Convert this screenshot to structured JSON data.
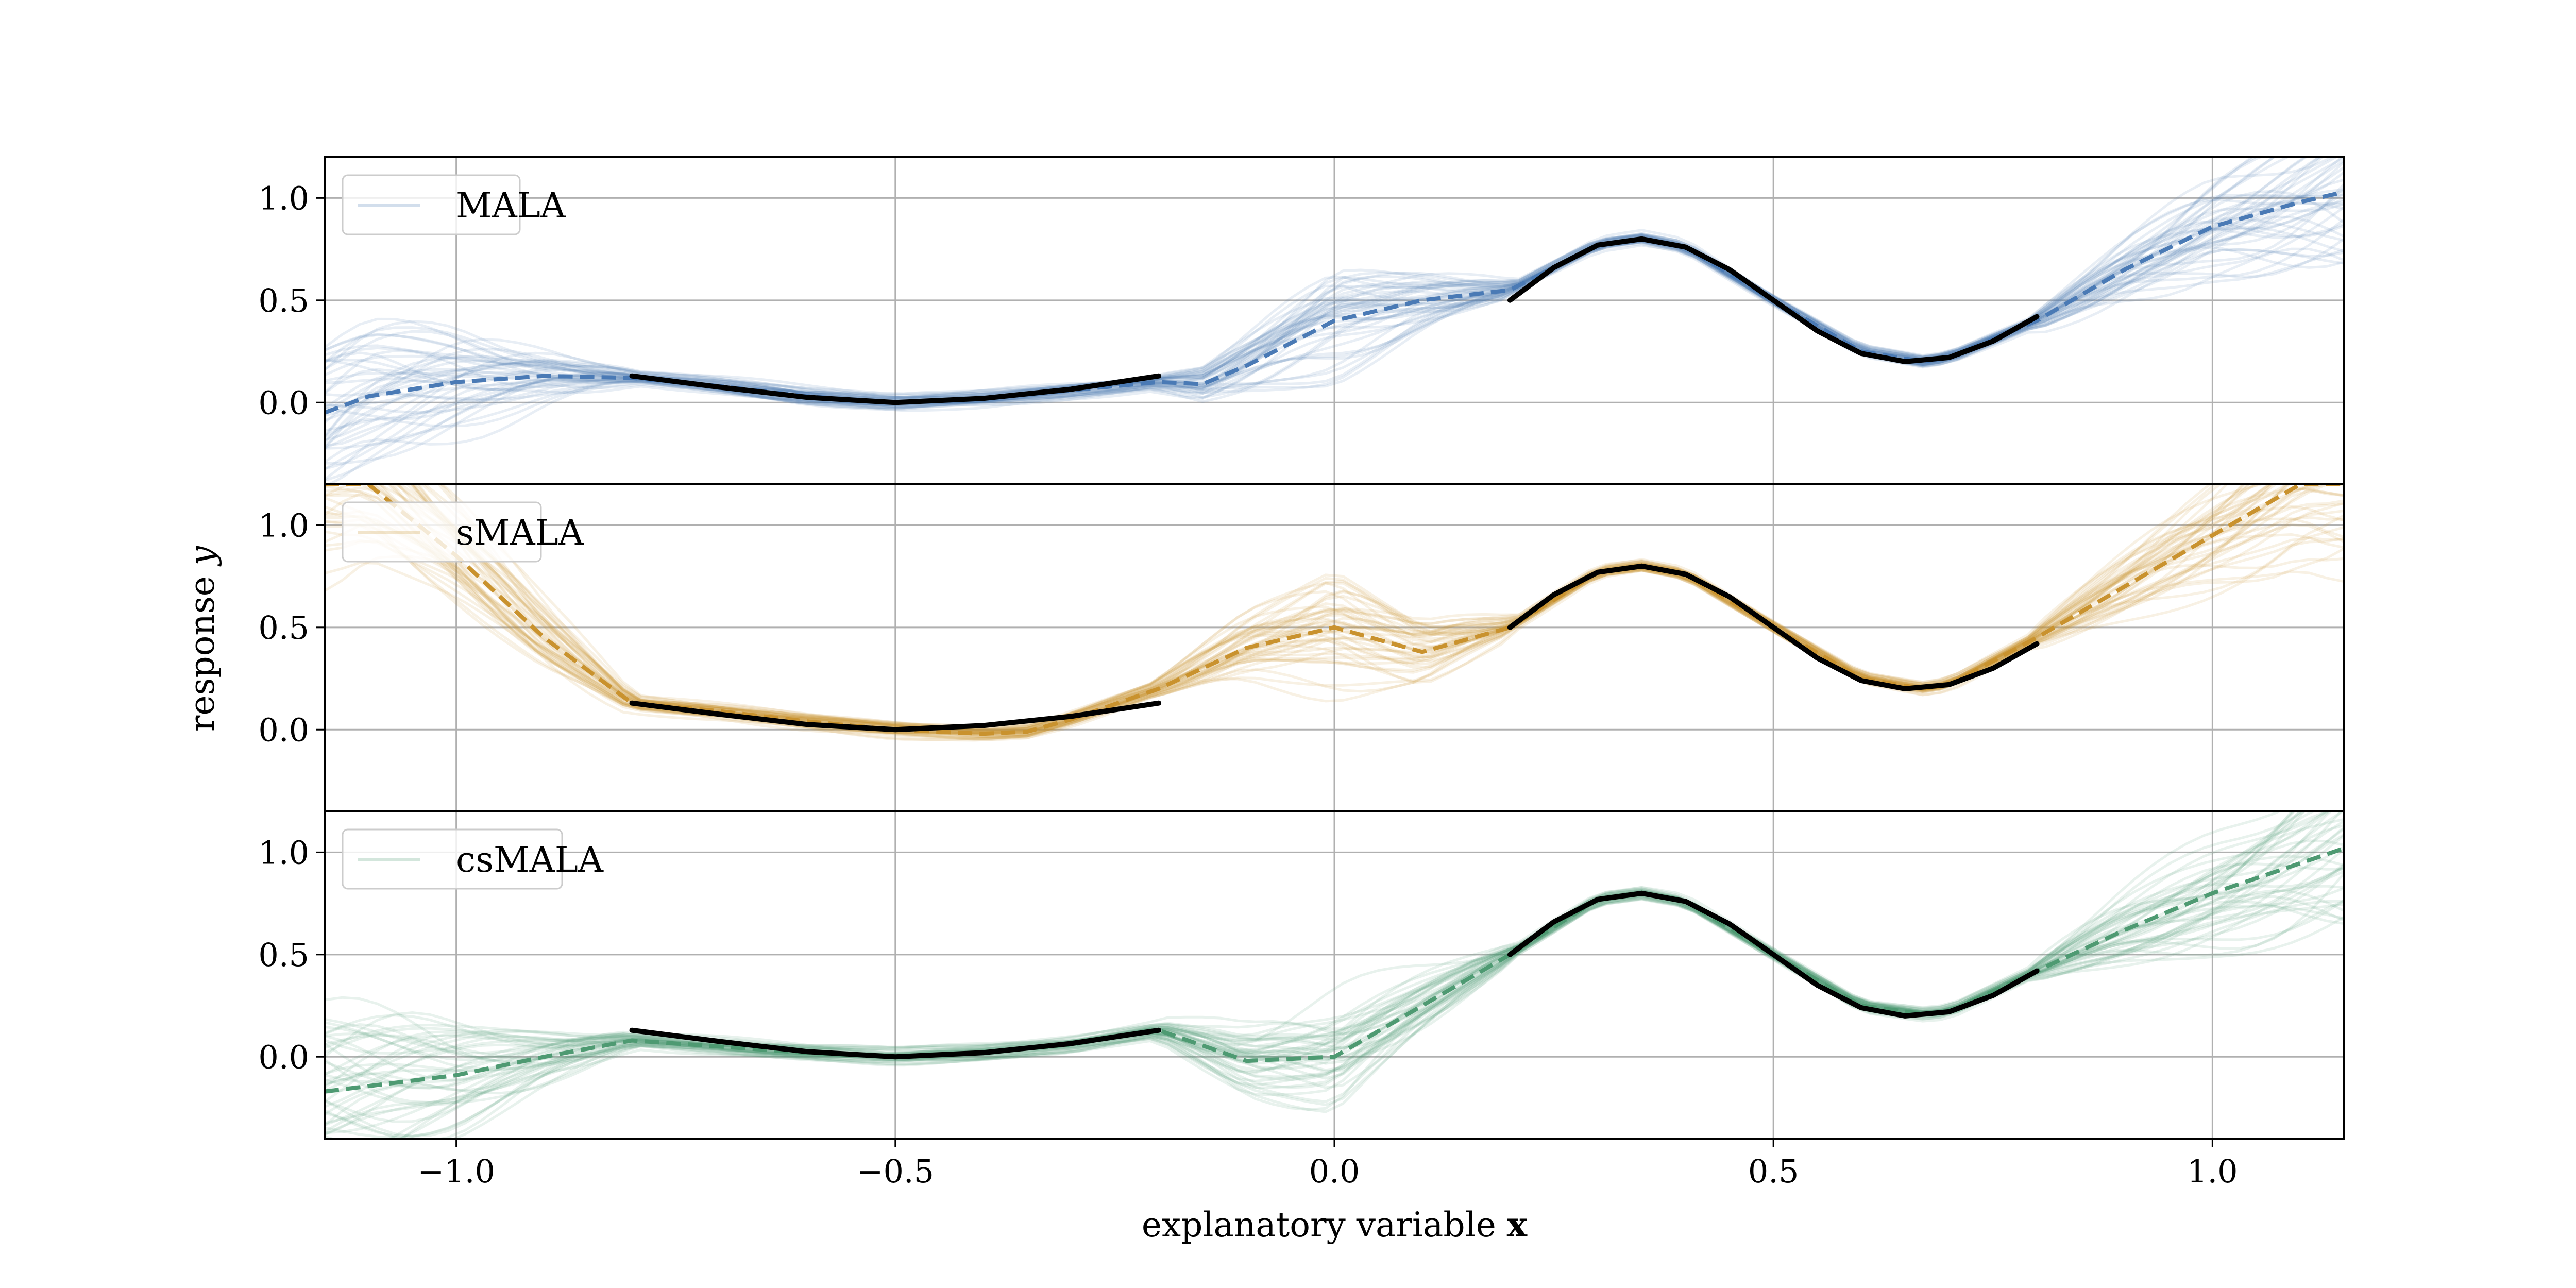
{
  "chart_data": {
    "type": "line",
    "xlabel": "explanatory variable",
    "xlabel_bold": "x",
    "ylabel": "response",
    "ylabel_italic": "y",
    "xlim": [
      -1.15,
      1.15
    ],
    "ylim": [
      -0.4,
      1.2
    ],
    "xticks": [
      -1.0,
      -0.5,
      0.0,
      0.5,
      1.0
    ],
    "xtick_labels": [
      "−1.0",
      "−0.5",
      "0.0",
      "0.5",
      "1.0"
    ],
    "yticks": [
      0.0,
      0.5,
      1.0
    ],
    "ytick_labels": [
      "0.0",
      "0.5",
      "1.0"
    ],
    "grid": true,
    "legend_position": "top-left",
    "truth_color": "#000000",
    "truth_segments": [
      {
        "x": [
          -0.8,
          -0.7,
          -0.6,
          -0.5,
          -0.4,
          -0.3,
          -0.2
        ],
        "y": [
          0.13,
          0.075,
          0.025,
          0.0,
          0.02,
          0.065,
          0.13
        ]
      },
      {
        "x": [
          0.2,
          0.25,
          0.3,
          0.35,
          0.4,
          0.45,
          0.5,
          0.55,
          0.6,
          0.65,
          0.7,
          0.75,
          0.8
        ],
        "y": [
          0.5,
          0.66,
          0.77,
          0.8,
          0.76,
          0.65,
          0.5,
          0.35,
          0.24,
          0.2,
          0.22,
          0.3,
          0.42
        ]
      }
    ],
    "panels": [
      {
        "legend": "MALA",
        "color": "#4a7ab5",
        "mean": {
          "x": [
            -1.15,
            -1.1,
            -1.0,
            -0.9,
            -0.8,
            -0.7,
            -0.6,
            -0.5,
            -0.4,
            -0.3,
            -0.2,
            -0.15,
            -0.1,
            0.0,
            0.1,
            0.2,
            0.3,
            0.35,
            0.4,
            0.5,
            0.6,
            0.67,
            0.7,
            0.8,
            0.9,
            1.0,
            1.1,
            1.15
          ],
          "y": [
            -0.05,
            0.03,
            0.1,
            0.13,
            0.12,
            0.08,
            0.03,
            0.0,
            0.02,
            0.06,
            0.1,
            0.09,
            0.18,
            0.4,
            0.5,
            0.55,
            0.77,
            0.8,
            0.76,
            0.5,
            0.25,
            0.2,
            0.22,
            0.4,
            0.65,
            0.86,
            0.98,
            1.03
          ]
        }
      },
      {
        "legend": "sMALA",
        "color": "#c9922e",
        "mean": {
          "x": [
            -1.1,
            -1.0,
            -0.9,
            -0.8,
            -0.7,
            -0.6,
            -0.5,
            -0.4,
            -0.35,
            -0.3,
            -0.2,
            -0.1,
            0.0,
            0.05,
            0.1,
            0.2,
            0.3,
            0.35,
            0.4,
            0.5,
            0.6,
            0.67,
            0.7,
            0.8,
            0.9,
            1.0,
            1.1
          ],
          "y": [
            1.2,
            0.85,
            0.45,
            0.13,
            0.09,
            0.04,
            0.0,
            -0.02,
            -0.01,
            0.05,
            0.2,
            0.4,
            0.5,
            0.44,
            0.38,
            0.5,
            0.77,
            0.8,
            0.76,
            0.5,
            0.25,
            0.2,
            0.22,
            0.45,
            0.7,
            0.95,
            1.2
          ]
        }
      },
      {
        "legend": "csMALA",
        "color": "#4e9a72",
        "mean": {
          "x": [
            -1.15,
            -1.0,
            -0.9,
            -0.8,
            -0.7,
            -0.6,
            -0.5,
            -0.4,
            -0.3,
            -0.2,
            -0.1,
            0.0,
            0.1,
            0.2,
            0.3,
            0.35,
            0.4,
            0.5,
            0.6,
            0.67,
            0.7,
            0.8,
            0.9,
            1.0,
            1.15
          ],
          "y": [
            -0.17,
            -0.09,
            0.0,
            0.08,
            0.05,
            0.02,
            0.0,
            0.02,
            0.06,
            0.13,
            -0.02,
            0.0,
            0.25,
            0.5,
            0.77,
            0.8,
            0.76,
            0.5,
            0.25,
            0.21,
            0.22,
            0.42,
            0.62,
            0.8,
            1.02
          ]
        }
      }
    ]
  }
}
